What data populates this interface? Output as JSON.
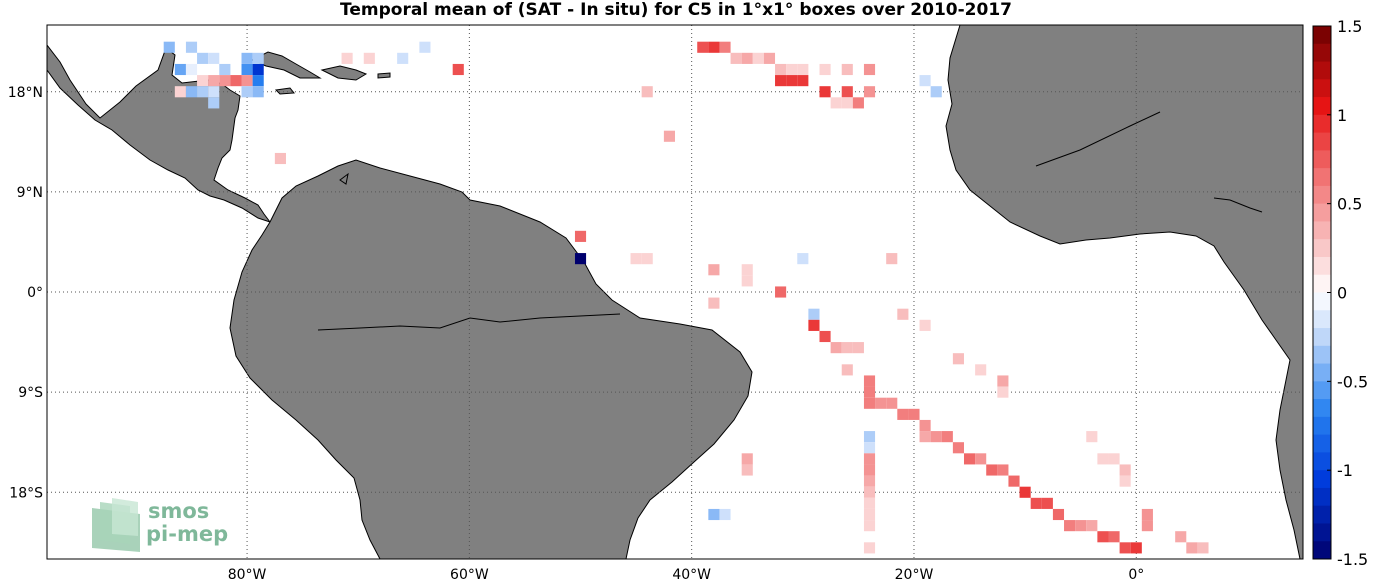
{
  "chart_data": {
    "type": "heatmap",
    "title": "Temporal mean of (SAT - In situ) for C5 in 1°x1° boxes over 2010-2017",
    "x_ticks": [
      {
        "lon": -80,
        "label": "80°W"
      },
      {
        "lon": -60,
        "label": "60°W"
      },
      {
        "lon": -40,
        "label": "40°W"
      },
      {
        "lon": -20,
        "label": "20°W"
      },
      {
        "lon": 0,
        "label": "0°"
      }
    ],
    "y_ticks": [
      {
        "lat": 18,
        "label": "18°N"
      },
      {
        "lat": 9,
        "label": "9°N"
      },
      {
        "lat": 0,
        "label": "0°"
      },
      {
        "lat": -9,
        "label": "9°S"
      },
      {
        "lat": -18,
        "label": "18°S"
      }
    ],
    "lon_range": [
      -98,
      15
    ],
    "lat_range": [
      -24,
      24
    ],
    "grid": true,
    "colorbar": {
      "range": [
        -1.5,
        1.5
      ],
      "ticks": [
        {
          "v": 1.5,
          "label": "1.5"
        },
        {
          "v": 1,
          "label": "1"
        },
        {
          "v": 0.5,
          "label": "0.5"
        },
        {
          "v": 0,
          "label": "0"
        },
        {
          "v": -0.5,
          "label": "-0.5"
        },
        {
          "v": -1,
          "label": "-1"
        },
        {
          "v": -1.5,
          "label": "-1.5"
        }
      ]
    },
    "logo": {
      "line1": "smos",
      "line2": "pi-mep"
    },
    "cells": [
      [
        -87,
        22,
        -0.4
      ],
      [
        -85,
        22,
        -0.3
      ],
      [
        -64,
        22,
        -0.2
      ],
      [
        -66,
        21,
        -0.2
      ],
      [
        -71,
        21,
        0.2
      ],
      [
        -69,
        21,
        0.2
      ],
      [
        -86,
        20,
        -0.5
      ],
      [
        -85,
        20,
        -0.1
      ],
      [
        -82,
        20,
        -0.3
      ],
      [
        -80,
        20,
        -0.6
      ],
      [
        -79,
        20,
        -1.1
      ],
      [
        -61,
        20,
        0.8
      ],
      [
        -84,
        19,
        0.2
      ],
      [
        -83,
        19,
        0.4
      ],
      [
        -82,
        19,
        0.5
      ],
      [
        -81,
        19,
        0.7
      ],
      [
        -80,
        19,
        0.5
      ],
      [
        -79,
        19,
        -0.7
      ],
      [
        -86,
        18,
        0.2
      ],
      [
        -85,
        18,
        -0.4
      ],
      [
        -84,
        18,
        -0.3
      ],
      [
        -83,
        18,
        -0.2
      ],
      [
        -80,
        18,
        -0.3
      ],
      [
        -79,
        18,
        -0.4
      ],
      [
        -83,
        17,
        -0.3
      ],
      [
        -77,
        12,
        0.3
      ],
      [
        -50,
        5,
        0.7
      ],
      [
        -50,
        3,
        -1.5
      ],
      [
        -39,
        22,
        0.8
      ],
      [
        -38,
        22,
        0.9
      ],
      [
        -37,
        22,
        0.6
      ],
      [
        -36,
        21,
        0.3
      ],
      [
        -35,
        21,
        0.4
      ],
      [
        -34,
        21,
        0.2
      ],
      [
        -33,
        21,
        0.4
      ],
      [
        -32,
        20,
        0.3
      ],
      [
        -31,
        20,
        0.2
      ],
      [
        -30,
        20,
        0.2
      ],
      [
        -28,
        20,
        0.2
      ],
      [
        -26,
        20,
        0.3
      ],
      [
        -24,
        20,
        0.5
      ],
      [
        -32,
        19,
        0.9
      ],
      [
        -31,
        19,
        0.9
      ],
      [
        -30,
        19,
        0.9
      ],
      [
        -28,
        18,
        0.9
      ],
      [
        -26,
        18,
        0.8
      ],
      [
        -24,
        18,
        0.5
      ],
      [
        -27,
        17,
        0.2
      ],
      [
        -26,
        17,
        0.2
      ],
      [
        -25,
        17,
        0.6
      ],
      [
        -19,
        19,
        -0.2
      ],
      [
        -18,
        18,
        -0.3
      ],
      [
        -44,
        18,
        0.3
      ],
      [
        -42,
        14,
        0.4
      ],
      [
        -45,
        3,
        0.2
      ],
      [
        -44,
        3,
        0.2
      ],
      [
        -38,
        2,
        0.4
      ],
      [
        -35,
        2,
        0.2
      ],
      [
        -35,
        1,
        0.2
      ],
      [
        -32,
        0,
        0.7
      ],
      [
        -38,
        -1,
        0.3
      ],
      [
        -30,
        3,
        -0.2
      ],
      [
        -22,
        3,
        0.3
      ],
      [
        -21,
        -2,
        0.3
      ],
      [
        -19,
        -3,
        0.2
      ],
      [
        -16,
        -6,
        0.3
      ],
      [
        -14,
        -7,
        0.2
      ],
      [
        -12,
        -8,
        0.4
      ],
      [
        -12,
        -9,
        0.2
      ],
      [
        -35,
        -15,
        0.4
      ],
      [
        -35,
        -16,
        0.3
      ],
      [
        -29,
        -2,
        -0.3
      ],
      [
        -29,
        -3,
        0.9
      ],
      [
        -28,
        -4,
        0.8
      ],
      [
        -27,
        -5,
        0.4
      ],
      [
        -26,
        -5,
        0.3
      ],
      [
        -25,
        -5,
        0.3
      ],
      [
        -26,
        -7,
        0.3
      ],
      [
        -24,
        -8,
        0.6
      ],
      [
        -24,
        -9,
        0.6
      ],
      [
        -24,
        -10,
        0.6
      ],
      [
        -23,
        -10,
        0.5
      ],
      [
        -22,
        -10,
        0.5
      ],
      [
        -21,
        -11,
        0.6
      ],
      [
        -20,
        -11,
        0.6
      ],
      [
        -19,
        -12,
        0.5
      ],
      [
        -19,
        -13,
        0.4
      ],
      [
        -18,
        -13,
        0.5
      ],
      [
        -17,
        -13,
        0.6
      ],
      [
        -16,
        -14,
        0.6
      ],
      [
        -15,
        -15,
        0.7
      ],
      [
        -14,
        -15,
        0.5
      ],
      [
        -13,
        -16,
        0.7
      ],
      [
        -12,
        -16,
        0.6
      ],
      [
        -11,
        -17,
        0.7
      ],
      [
        -10,
        -18,
        0.9
      ],
      [
        -9,
        -19,
        0.8
      ],
      [
        -8,
        -19,
        0.8
      ],
      [
        -7,
        -20,
        0.7
      ],
      [
        -6,
        -21,
        0.6
      ],
      [
        -5,
        -21,
        0.5
      ],
      [
        -4,
        -21,
        0.4
      ],
      [
        -3,
        -22,
        0.8
      ],
      [
        -2,
        -22,
        0.7
      ],
      [
        -1,
        -23,
        0.8
      ],
      [
        0,
        -23,
        0.9
      ],
      [
        -24,
        -13,
        -0.3
      ],
      [
        -24,
        -14,
        -0.2
      ],
      [
        -24,
        -15,
        0.5
      ],
      [
        -24,
        -16,
        0.5
      ],
      [
        -24,
        -17,
        0.4
      ],
      [
        -24,
        -18,
        0.3
      ],
      [
        -24,
        -19,
        0.2
      ],
      [
        -24,
        -20,
        0.2
      ],
      [
        -24,
        -21,
        0.2
      ],
      [
        -24,
        -23,
        0.2
      ],
      [
        -4,
        -13,
        0.2
      ],
      [
        -3,
        -15,
        0.2
      ],
      [
        -2,
        -15,
        0.2
      ],
      [
        -1,
        -16,
        0.3
      ],
      [
        -1,
        -17,
        0.2
      ],
      [
        1,
        -20,
        0.5
      ],
      [
        1,
        -21,
        0.5
      ],
      [
        4,
        -22,
        0.4
      ],
      [
        5,
        -23,
        0.4
      ],
      [
        6,
        -23,
        0.3
      ],
      [
        -38,
        -20,
        -0.4
      ],
      [
        -37,
        -20,
        -0.2
      ],
      [
        -84,
        21,
        -0.3
      ],
      [
        -83,
        21,
        -0.2
      ],
      [
        -80,
        21,
        -0.4
      ],
      [
        -79,
        21,
        -0.3
      ]
    ]
  }
}
